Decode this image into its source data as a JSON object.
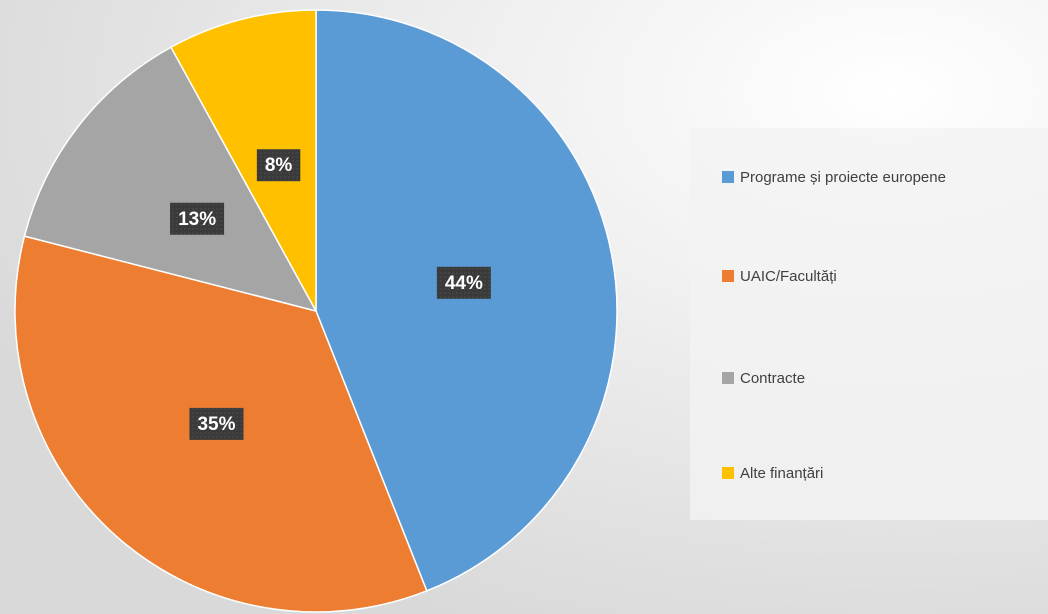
{
  "chart_data": {
    "type": "pie",
    "categories": [
      "Programe și proiecte europene",
      "UAIC/Facultăți",
      "Contracte",
      "Alte finanțări"
    ],
    "values": [
      44,
      35,
      13,
      8
    ],
    "value_labels": [
      "44%",
      "35%",
      "13%",
      "8%"
    ],
    "colors": [
      "#5b9bd5",
      "#ed7d31",
      "#a5a5a5",
      "#ffc000"
    ],
    "legend": "right"
  }
}
